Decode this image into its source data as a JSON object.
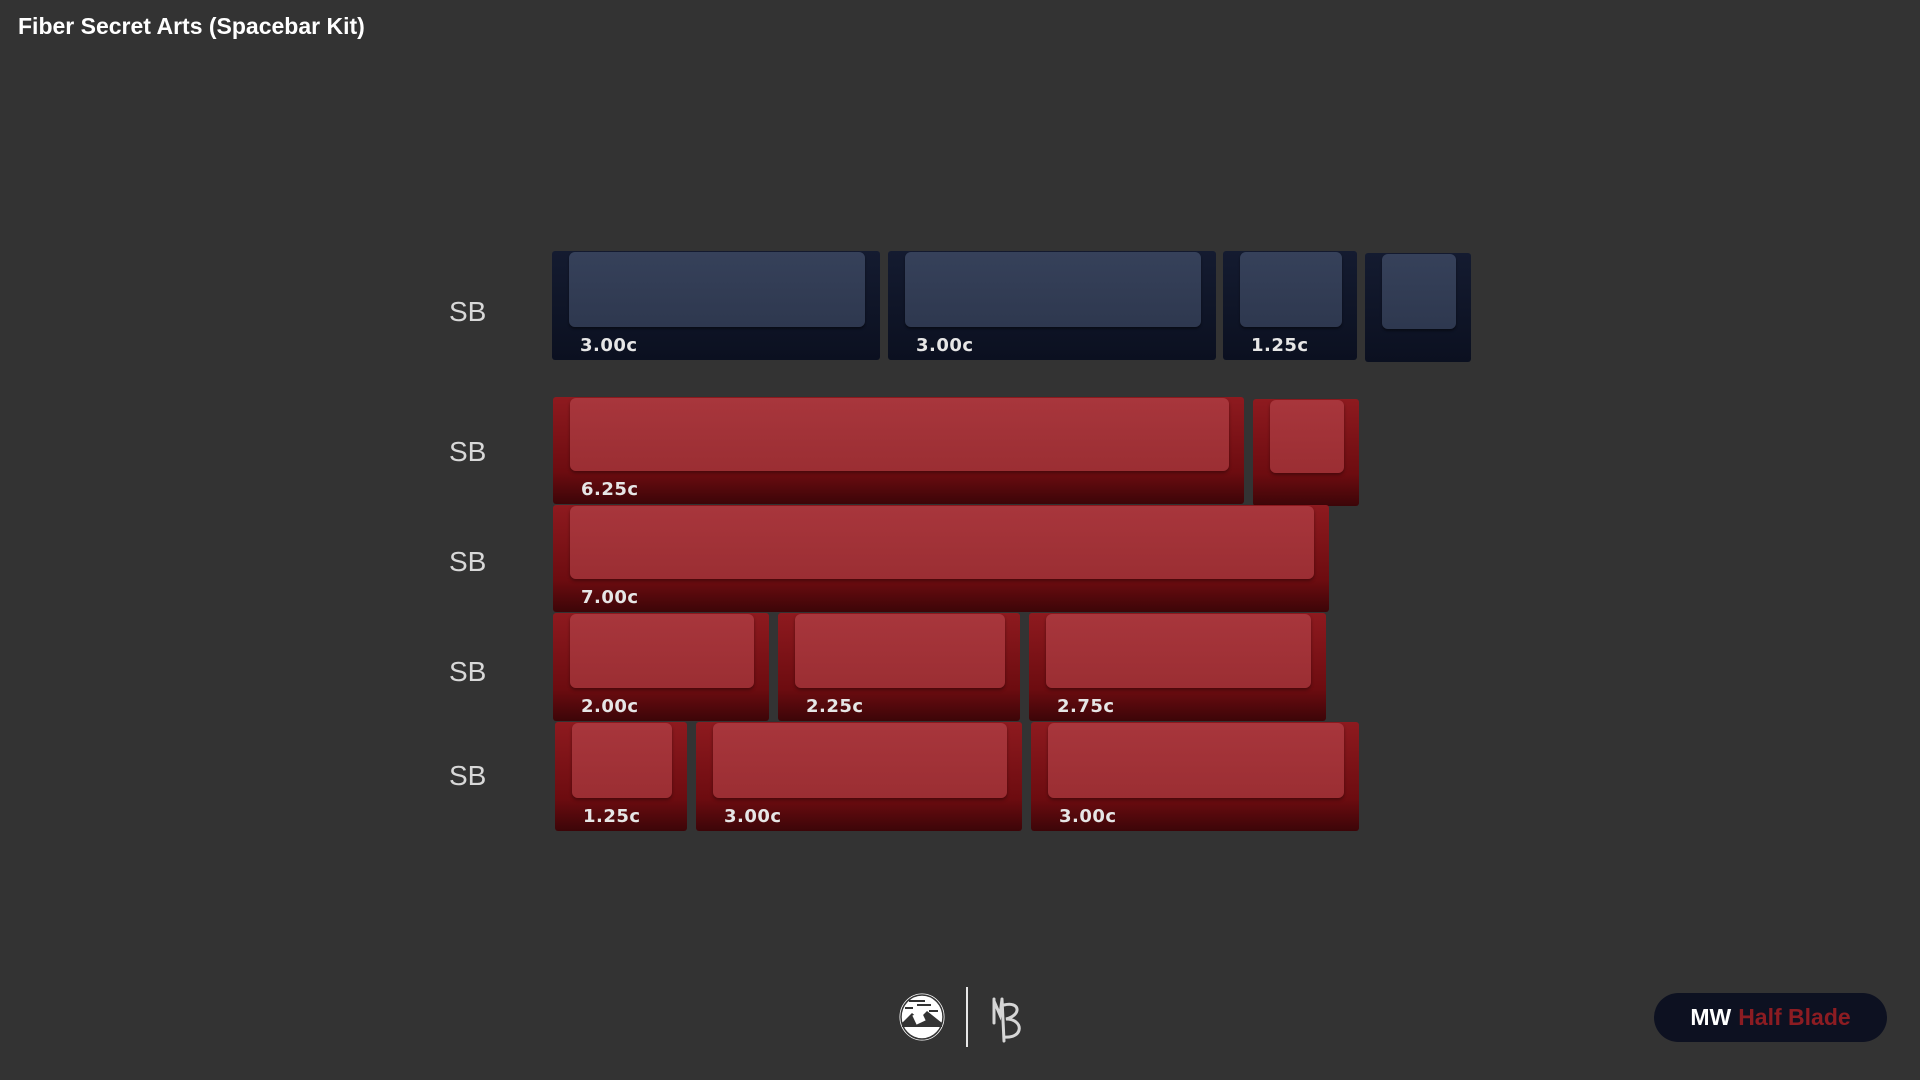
{
  "title": "Fiber Secret Arts (Spacebar Kit)",
  "rows": [
    {
      "label": "SB",
      "keys": [
        {
          "size": "3.00c",
          "color": "navy"
        },
        {
          "size": "3.00c",
          "color": "navy"
        },
        {
          "size": "1.25c",
          "color": "navy"
        },
        {
          "size": "",
          "color": "navy"
        }
      ]
    },
    {
      "label": "SB",
      "keys": [
        {
          "size": "6.25c",
          "color": "red"
        },
        {
          "size": "",
          "color": "red"
        }
      ]
    },
    {
      "label": "SB",
      "keys": [
        {
          "size": "7.00c",
          "color": "red"
        }
      ]
    },
    {
      "label": "SB",
      "keys": [
        {
          "size": "2.00c",
          "color": "red"
        },
        {
          "size": "2.25c",
          "color": "red"
        },
        {
          "size": "2.75c",
          "color": "red"
        }
      ]
    },
    {
      "label": "SB",
      "keys": [
        {
          "size": "1.25c",
          "color": "red"
        },
        {
          "size": "3.00c",
          "color": "red"
        },
        {
          "size": "3.00c",
          "color": "red"
        }
      ]
    }
  ],
  "colors": {
    "background": "#333333",
    "navy": "#2e384f",
    "red": "#9b2e33",
    "badge_bg": "#0d1121",
    "badge_accent": "#8c1c22"
  },
  "footer": {
    "logos": [
      "mountain-emblem-icon",
      "mb-signature-logo"
    ],
    "badge": {
      "prefix": "MW",
      "name": "Half Blade"
    }
  }
}
